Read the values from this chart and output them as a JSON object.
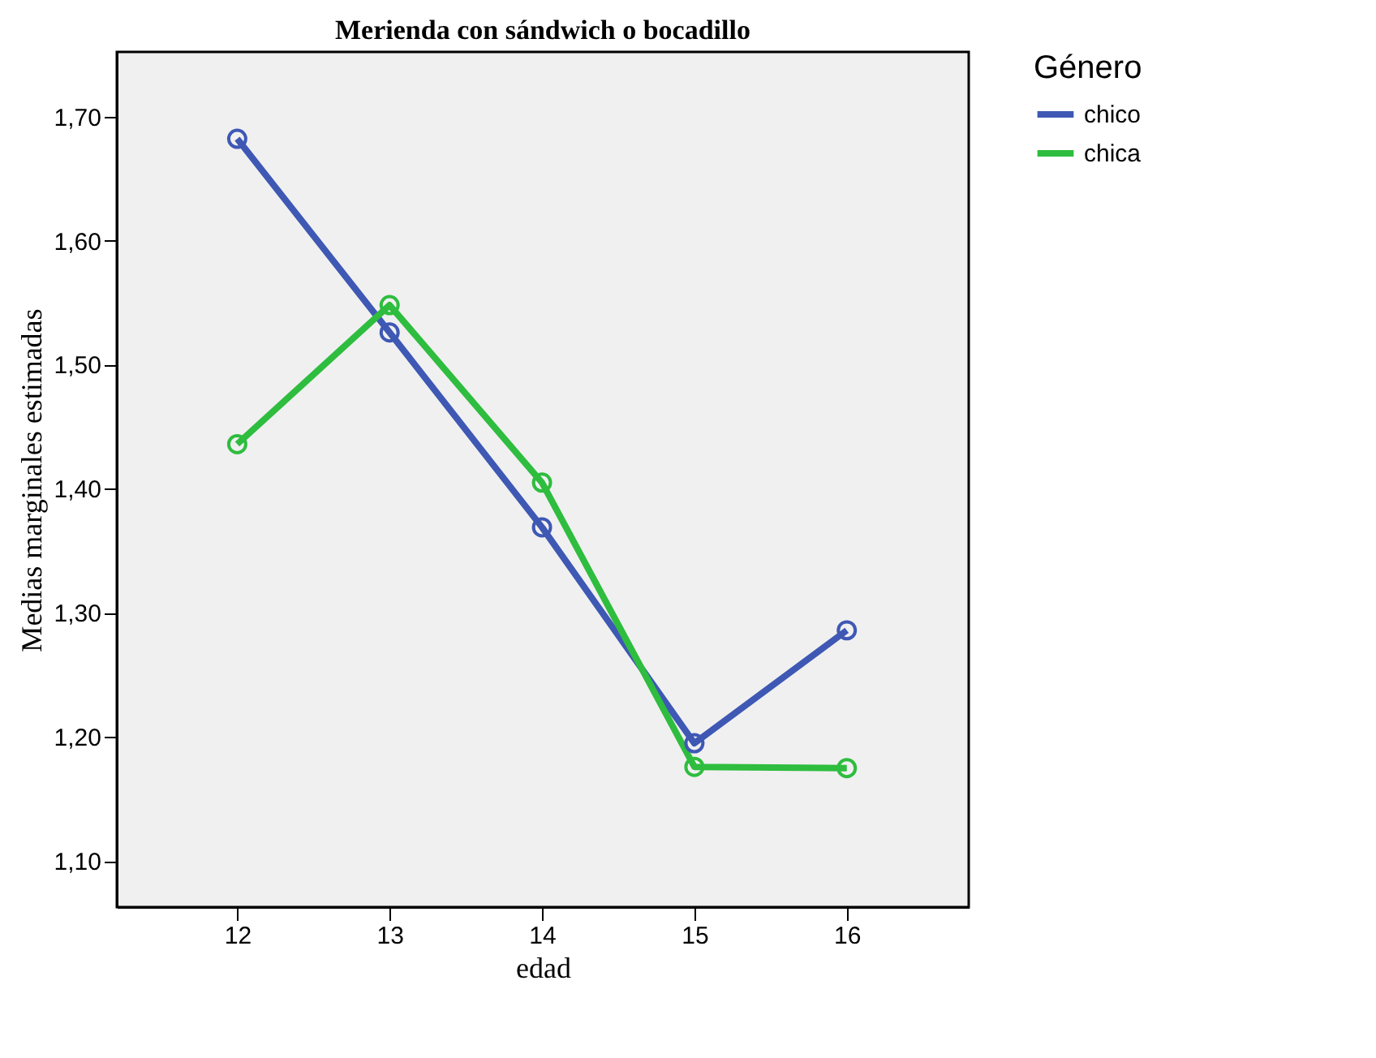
{
  "chart_data": {
    "type": "line",
    "title": "Merienda con sándwich o bocadillo",
    "xlabel": "edad",
    "ylabel": "Medias marginales estimadas",
    "legend_title": "Género",
    "legend": "right",
    "marker": "circle",
    "line_style": "solid",
    "grid": false,
    "x": [
      12,
      13,
      14,
      15,
      16
    ],
    "xlim": [
      11.21,
      16.8
    ],
    "xticks": [
      12,
      13,
      14,
      15,
      16
    ],
    "ylim": [
      1.063,
      1.752
    ],
    "yticks": [
      {
        "value": 1.1,
        "label": "1,10"
      },
      {
        "value": 1.2,
        "label": "1,20"
      },
      {
        "value": 1.3,
        "label": "1,30"
      },
      {
        "value": 1.4,
        "label": "1,40"
      },
      {
        "value": 1.5,
        "label": "1,50"
      },
      {
        "value": 1.6,
        "label": "1,60"
      },
      {
        "value": 1.7,
        "label": "1,70"
      }
    ],
    "series": [
      {
        "name": "chico",
        "color": "#3e58b4",
        "values": [
          1.682,
          1.526,
          1.369,
          1.195,
          1.286
        ]
      },
      {
        "name": "chica",
        "color": "#2ebd3e",
        "values": [
          1.436,
          1.548,
          1.405,
          1.176,
          1.175
        ]
      }
    ]
  }
}
